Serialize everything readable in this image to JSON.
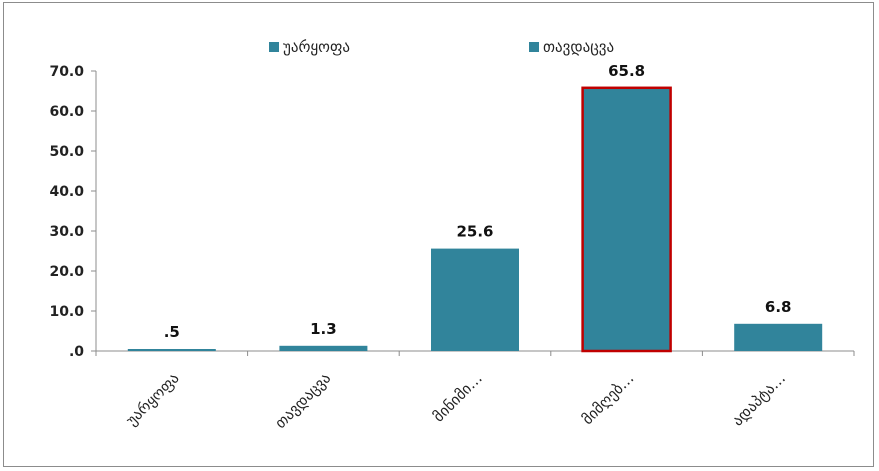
{
  "chart_data": {
    "type": "bar",
    "title": "",
    "xlabel": "",
    "ylabel": "",
    "categories": [
      "უარყოფა",
      "თავდაცვა",
      "მინიმი…",
      "მიმღებ…",
      "ადაპტა…"
    ],
    "values": [
      0.5,
      1.3,
      25.6,
      65.8,
      6.8
    ],
    "data_labels": [
      ".5",
      "1.3",
      "25.6",
      "65.8",
      "6.8"
    ],
    "highlighted_index": 3,
    "ylim": [
      0,
      70
    ],
    "yticks": [
      ".0",
      "10.0",
      "20.0",
      "30.0",
      "40.0",
      "50.0",
      "60.0",
      "70.0"
    ],
    "grid": false,
    "legend_position": "top",
    "legend": [
      "უარყოფა",
      "თავდაცვა"
    ],
    "colors": {
      "bar": "#31849b",
      "highlight_border": "#c00000",
      "axis": "#8c8c8c"
    }
  }
}
